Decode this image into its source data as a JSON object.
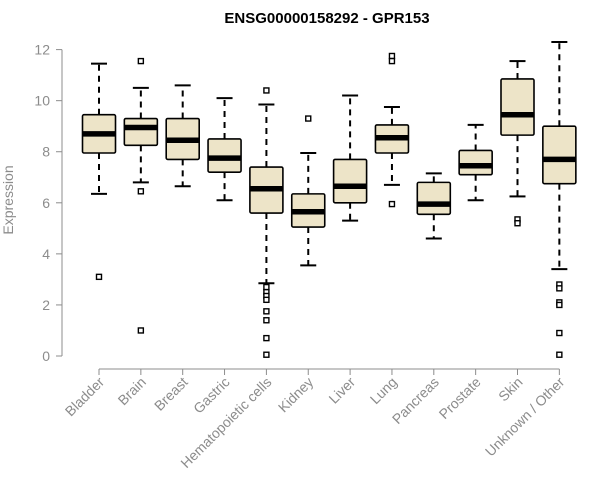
{
  "chart_data": {
    "type": "boxplot",
    "title": "ENSG00000158292 - GPR153",
    "xlabel": "",
    "ylabel": "Expression",
    "ylim": [
      0,
      12.3
    ],
    "yticks": [
      0,
      2,
      4,
      6,
      8,
      10,
      12
    ],
    "box_fill": "#ede4c8",
    "box_stroke": "#000000",
    "median_color": "#000000",
    "axis_color": "#8c8c8c",
    "categories": [
      "Bladder",
      "Brain",
      "Breast",
      "Gastric",
      "Hematopoietic cells",
      "Kidney",
      "Liver",
      "Lung",
      "Pancreas",
      "Prostate",
      "Skin",
      "Unknown / Other"
    ],
    "boxes": [
      {
        "category": "Bladder",
        "whisker_low": 6.35,
        "q1": 7.95,
        "median": 8.7,
        "q3": 9.45,
        "whisker_high": 11.45,
        "outliers": [
          3.1
        ]
      },
      {
        "category": "Brain",
        "whisker_low": 6.8,
        "q1": 8.25,
        "median": 8.95,
        "q3": 9.3,
        "whisker_high": 10.5,
        "outliers": [
          11.55,
          6.45,
          1.0
        ]
      },
      {
        "category": "Breast",
        "whisker_low": 6.65,
        "q1": 7.7,
        "median": 8.45,
        "q3": 9.3,
        "whisker_high": 10.6,
        "outliers": []
      },
      {
        "category": "Gastric",
        "whisker_low": 6.1,
        "q1": 7.2,
        "median": 7.75,
        "q3": 8.5,
        "whisker_high": 10.1,
        "outliers": []
      },
      {
        "category": "Hematopoietic cells",
        "whisker_low": 2.85,
        "q1": 5.6,
        "median": 6.55,
        "q3": 7.4,
        "whisker_high": 9.85,
        "outliers": [
          10.4,
          2.7,
          2.5,
          2.35,
          2.2,
          1.75,
          1.4,
          0.7,
          0.05
        ]
      },
      {
        "category": "Kidney",
        "whisker_low": 3.55,
        "q1": 5.05,
        "median": 5.65,
        "q3": 6.35,
        "whisker_high": 7.95,
        "outliers": [
          9.3
        ]
      },
      {
        "category": "Liver",
        "whisker_low": 5.3,
        "q1": 6.0,
        "median": 6.65,
        "q3": 7.7,
        "whisker_high": 10.2,
        "outliers": []
      },
      {
        "category": "Lung",
        "whisker_low": 6.7,
        "q1": 7.95,
        "median": 8.55,
        "q3": 9.05,
        "whisker_high": 9.75,
        "outliers": [
          11.75,
          11.55,
          5.95
        ]
      },
      {
        "category": "Pancreas",
        "whisker_low": 4.6,
        "q1": 5.55,
        "median": 5.95,
        "q3": 6.8,
        "whisker_high": 7.15,
        "outliers": []
      },
      {
        "category": "Prostate",
        "whisker_low": 6.1,
        "q1": 7.1,
        "median": 7.45,
        "q3": 8.05,
        "whisker_high": 9.05,
        "outliers": []
      },
      {
        "category": "Skin",
        "whisker_low": 6.25,
        "q1": 8.65,
        "median": 9.45,
        "q3": 10.85,
        "whisker_high": 11.55,
        "outliers": [
          5.35,
          5.2
        ]
      },
      {
        "category": "Unknown / Other",
        "whisker_low": 3.4,
        "q1": 6.75,
        "median": 7.7,
        "q3": 9.0,
        "whisker_high": 12.3,
        "outliers": [
          2.8,
          2.65,
          2.1,
          2.0,
          0.9,
          0.05
        ]
      }
    ]
  }
}
